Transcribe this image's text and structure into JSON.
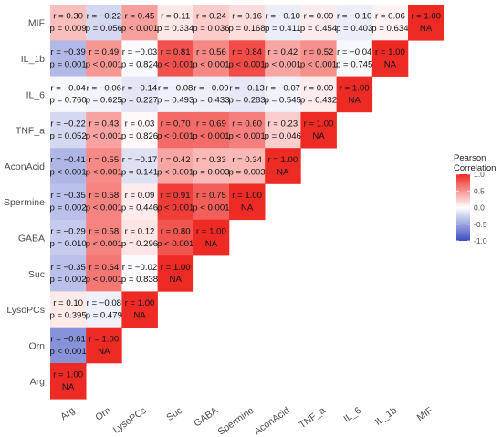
{
  "chart_data": {
    "type": "heatmap",
    "variables": [
      "Arg",
      "Orn",
      "LysoPCs",
      "Suc",
      "GABA",
      "Spermine",
      "AconAcid",
      "TNF_a",
      "IL_6",
      "IL_1b",
      "MIF"
    ],
    "x_tick_labels": [
      "Arg",
      "Orn",
      "LysoPCs",
      "Suc",
      "GABA",
      "Spermine",
      "AconAcid",
      "TNF_a",
      "IL_6",
      "IL_1b",
      "MIF"
    ],
    "y_tick_labels_top_to_bottom": [
      "MIF",
      "IL_1b",
      "IL_6",
      "TNF_a",
      "AconAcid",
      "Spermine",
      "GABA",
      "Suc",
      "LysoPCs",
      "Orn",
      "Arg"
    ],
    "cells": [
      {
        "row": "MIF",
        "col": "Arg",
        "r": 0.3,
        "r_text": "r = 0.30",
        "p_text": "p = 0.009"
      },
      {
        "row": "MIF",
        "col": "Orn",
        "r": -0.22,
        "r_text": "r = −0.22",
        "p_text": "p = 0.056"
      },
      {
        "row": "MIF",
        "col": "LysoPCs",
        "r": 0.45,
        "r_text": "r = 0.45",
        "p_text": "p < 0.001"
      },
      {
        "row": "MIF",
        "col": "Suc",
        "r": 0.11,
        "r_text": "r = 0.11",
        "p_text": "p = 0.334"
      },
      {
        "row": "MIF",
        "col": "GABA",
        "r": 0.24,
        "r_text": "r = 0.24",
        "p_text": "p = 0.036"
      },
      {
        "row": "MIF",
        "col": "Spermine",
        "r": 0.16,
        "r_text": "r = 0.16",
        "p_text": "p = 0.168"
      },
      {
        "row": "MIF",
        "col": "AconAcid",
        "r": -0.1,
        "r_text": "r = −0.10",
        "p_text": "p = 0.411"
      },
      {
        "row": "MIF",
        "col": "TNF_a",
        "r": 0.09,
        "r_text": "r = 0.09",
        "p_text": "p = 0.454"
      },
      {
        "row": "MIF",
        "col": "IL_6",
        "r": -0.1,
        "r_text": "r = −0.10",
        "p_text": "p = 0.403"
      },
      {
        "row": "MIF",
        "col": "IL_1b",
        "r": 0.06,
        "r_text": "r = 0.06",
        "p_text": "p = 0.634"
      },
      {
        "row": "MIF",
        "col": "MIF",
        "r": 1.0,
        "r_text": "r = 1.00",
        "p_text": "NA"
      },
      {
        "row": "IL_1b",
        "col": "Arg",
        "r": -0.39,
        "r_text": "r = −0.39",
        "p_text": "p = 0.001"
      },
      {
        "row": "IL_1b",
        "col": "Orn",
        "r": 0.49,
        "r_text": "r = 0.49",
        "p_text": "p < 0.001"
      },
      {
        "row": "IL_1b",
        "col": "LysoPCs",
        "r": -0.03,
        "r_text": "r = −0.03",
        "p_text": "p = 0.824"
      },
      {
        "row": "IL_1b",
        "col": "Suc",
        "r": 0.81,
        "r_text": "r = 0.81",
        "p_text": "p < 0.001"
      },
      {
        "row": "IL_1b",
        "col": "GABA",
        "r": 0.56,
        "r_text": "r = 0.56",
        "p_text": "p < 0.001"
      },
      {
        "row": "IL_1b",
        "col": "Spermine",
        "r": 0.84,
        "r_text": "r = 0.84",
        "p_text": "p < 0.001"
      },
      {
        "row": "IL_1b",
        "col": "AconAcid",
        "r": 0.42,
        "r_text": "r = 0.42",
        "p_text": "p < 0.001"
      },
      {
        "row": "IL_1b",
        "col": "TNF_a",
        "r": 0.52,
        "r_text": "r = 0.52",
        "p_text": "p < 0.001"
      },
      {
        "row": "IL_1b",
        "col": "IL_6",
        "r": -0.04,
        "r_text": "r = −0.04",
        "p_text": "p = 0.745"
      },
      {
        "row": "IL_1b",
        "col": "IL_1b",
        "r": 1.0,
        "r_text": "r = 1.00",
        "p_text": "NA"
      },
      {
        "row": "IL_6",
        "col": "Arg",
        "r": -0.04,
        "r_text": "r = −0.04",
        "p_text": "p = 0.760"
      },
      {
        "row": "IL_6",
        "col": "Orn",
        "r": -0.06,
        "r_text": "r = −0.06",
        "p_text": "p = 0.625"
      },
      {
        "row": "IL_6",
        "col": "LysoPCs",
        "r": -0.14,
        "r_text": "r = −0.14",
        "p_text": "p = 0.227"
      },
      {
        "row": "IL_6",
        "col": "Suc",
        "r": -0.08,
        "r_text": "r = −0.08",
        "p_text": "p = 0.493"
      },
      {
        "row": "IL_6",
        "col": "GABA",
        "r": -0.09,
        "r_text": "r = −0.09",
        "p_text": "p = 0.433"
      },
      {
        "row": "IL_6",
        "col": "Spermine",
        "r": -0.13,
        "r_text": "r = −0.13",
        "p_text": "p = 0.283"
      },
      {
        "row": "IL_6",
        "col": "AconAcid",
        "r": -0.07,
        "r_text": "r = −0.07",
        "p_text": "p = 0.545"
      },
      {
        "row": "IL_6",
        "col": "TNF_a",
        "r": 0.09,
        "r_text": "r = 0.09",
        "p_text": "p = 0.432"
      },
      {
        "row": "IL_6",
        "col": "IL_6",
        "r": 1.0,
        "r_text": "r = 1.00",
        "p_text": "NA"
      },
      {
        "row": "TNF_a",
        "col": "Arg",
        "r": -0.22,
        "r_text": "r = −0.22",
        "p_text": "p = 0.052"
      },
      {
        "row": "TNF_a",
        "col": "Orn",
        "r": 0.43,
        "r_text": "r = 0.43",
        "p_text": "p < 0.001"
      },
      {
        "row": "TNF_a",
        "col": "LysoPCs",
        "r": 0.03,
        "r_text": "r = 0.03",
        "p_text": "p = 0.826"
      },
      {
        "row": "TNF_a",
        "col": "Suc",
        "r": 0.7,
        "r_text": "r = 0.70",
        "p_text": "p < 0.001"
      },
      {
        "row": "TNF_a",
        "col": "GABA",
        "r": 0.69,
        "r_text": "r = 0.69",
        "p_text": "p < 0.001"
      },
      {
        "row": "TNF_a",
        "col": "Spermine",
        "r": 0.6,
        "r_text": "r = 0.60",
        "p_text": "p < 0.001"
      },
      {
        "row": "TNF_a",
        "col": "AconAcid",
        "r": 0.23,
        "r_text": "r = 0.23",
        "p_text": "p = 0.046"
      },
      {
        "row": "TNF_a",
        "col": "TNF_a",
        "r": 1.0,
        "r_text": "r = 1.00",
        "p_text": "NA"
      },
      {
        "row": "AconAcid",
        "col": "Arg",
        "r": -0.41,
        "r_text": "r = −0.41",
        "p_text": "p < 0.001"
      },
      {
        "row": "AconAcid",
        "col": "Orn",
        "r": 0.55,
        "r_text": "r = 0.55",
        "p_text": "p < 0.001"
      },
      {
        "row": "AconAcid",
        "col": "LysoPCs",
        "r": -0.17,
        "r_text": "r = −0.17",
        "p_text": "p = 0.141"
      },
      {
        "row": "AconAcid",
        "col": "Suc",
        "r": 0.42,
        "r_text": "r = 0.42",
        "p_text": "p < 0.001"
      },
      {
        "row": "AconAcid",
        "col": "GABA",
        "r": 0.33,
        "r_text": "r = 0.33",
        "p_text": "p = 0.003"
      },
      {
        "row": "AconAcid",
        "col": "Spermine",
        "r": 0.34,
        "r_text": "r = 0.34",
        "p_text": "p = 0.003"
      },
      {
        "row": "AconAcid",
        "col": "AconAcid",
        "r": 1.0,
        "r_text": "r = 1.00",
        "p_text": "NA"
      },
      {
        "row": "Spermine",
        "col": "Arg",
        "r": -0.35,
        "r_text": "r = −0.35",
        "p_text": "p = 0.002"
      },
      {
        "row": "Spermine",
        "col": "Orn",
        "r": 0.58,
        "r_text": "r = 0.58",
        "p_text": "p < 0.001"
      },
      {
        "row": "Spermine",
        "col": "LysoPCs",
        "r": 0.09,
        "r_text": "r = 0.09",
        "p_text": "p = 0.446"
      },
      {
        "row": "Spermine",
        "col": "Suc",
        "r": 0.91,
        "r_text": "r = 0.91",
        "p_text": "p < 0.001"
      },
      {
        "row": "Spermine",
        "col": "GABA",
        "r": 0.75,
        "r_text": "r = 0.75",
        "p_text": "p < 0.001"
      },
      {
        "row": "Spermine",
        "col": "Spermine",
        "r": 1.0,
        "r_text": "r = 1.00",
        "p_text": "NA"
      },
      {
        "row": "GABA",
        "col": "Arg",
        "r": -0.29,
        "r_text": "r = −0.29",
        "p_text": "p = 0.010"
      },
      {
        "row": "GABA",
        "col": "Orn",
        "r": 0.58,
        "r_text": "r = 0.58",
        "p_text": "p < 0.001"
      },
      {
        "row": "GABA",
        "col": "LysoPCs",
        "r": 0.12,
        "r_text": "r = 0.12",
        "p_text": "p = 0.296"
      },
      {
        "row": "GABA",
        "col": "Suc",
        "r": 0.8,
        "r_text": "r = 0.80",
        "p_text": "p < 0.001"
      },
      {
        "row": "GABA",
        "col": "GABA",
        "r": 1.0,
        "r_text": "r = 1.00",
        "p_text": "NA"
      },
      {
        "row": "Suc",
        "col": "Arg",
        "r": -0.35,
        "r_text": "r = −0.35",
        "p_text": "p = 0.002"
      },
      {
        "row": "Suc",
        "col": "Orn",
        "r": 0.64,
        "r_text": "r = 0.64",
        "p_text": "p < 0.001"
      },
      {
        "row": "Suc",
        "col": "LysoPCs",
        "r": -0.02,
        "r_text": "r = −0.02",
        "p_text": "p = 0.838"
      },
      {
        "row": "Suc",
        "col": "Suc",
        "r": 1.0,
        "r_text": "r = 1.00",
        "p_text": "NA"
      },
      {
        "row": "LysoPCs",
        "col": "Arg",
        "r": 0.1,
        "r_text": "r = 0.10",
        "p_text": "p = 0.395"
      },
      {
        "row": "LysoPCs",
        "col": "Orn",
        "r": -0.08,
        "r_text": "r = −0.08",
        "p_text": "p = 0.479"
      },
      {
        "row": "LysoPCs",
        "col": "LysoPCs",
        "r": 1.0,
        "r_text": "r = 1.00",
        "p_text": "NA"
      },
      {
        "row": "Orn",
        "col": "Arg",
        "r": -0.61,
        "r_text": "r = −0.61",
        "p_text": "p < 0.001"
      },
      {
        "row": "Orn",
        "col": "Orn",
        "r": 1.0,
        "r_text": "r = 1.00",
        "p_text": "NA"
      },
      {
        "row": "Arg",
        "col": "Arg",
        "r": 1.0,
        "r_text": "r = 1.00",
        "p_text": "NA"
      }
    ],
    "legend": {
      "title_lines": [
        "Pearson",
        "Correlation"
      ],
      "ticks": [
        1.0,
        0.5,
        0.0,
        -0.5,
        -1.0
      ],
      "tick_labels": [
        "1.0",
        "0.5",
        "0.0",
        "-0.5",
        "-1.0"
      ],
      "range": [
        -1,
        1
      ],
      "placement": "right"
    },
    "color_scale": {
      "low": "#3b4cc0",
      "mid": "#ffffff",
      "high": "#ee2a24"
    },
    "grid": false
  }
}
